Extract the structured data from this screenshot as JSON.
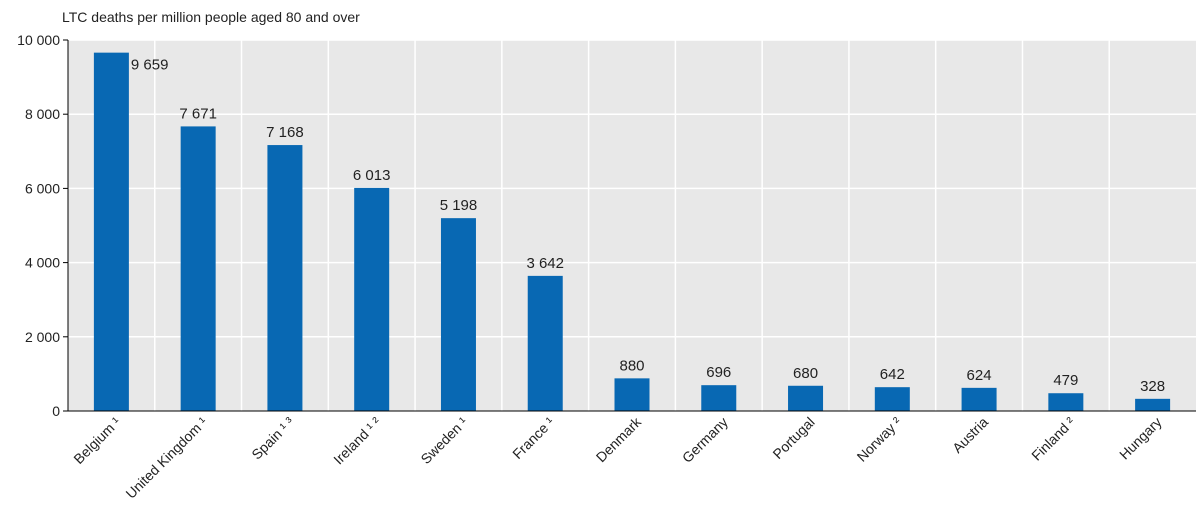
{
  "chart_data": {
    "type": "bar",
    "title": "",
    "xlabel": "",
    "ylabel": "LTC deaths per million people aged 80 and over",
    "ylim": [
      0,
      10000
    ],
    "yticks": [
      0,
      2000,
      4000,
      6000,
      8000,
      10000
    ],
    "ytick_labels": [
      "0",
      "2 000",
      "4 000",
      "6 000",
      "8 000",
      "10 000"
    ],
    "grid": true,
    "bar_color": "#0868b3",
    "background_color": "#e8e8e8",
    "categories": [
      "Belgium ¹",
      "United Kingdom ¹",
      "Spain ¹ ³",
      "Ireland ¹ ²",
      "Sweden ¹",
      "France ¹",
      "Denmark",
      "Germany",
      "Portugal",
      "Norway ²",
      "Austria",
      "Finland ²",
      "Hungary"
    ],
    "values": [
      9659,
      7671,
      7168,
      6013,
      5198,
      3642,
      880,
      696,
      680,
      642,
      624,
      479,
      328
    ],
    "value_labels": [
      "9 659",
      "7 671",
      "7 168",
      "6 013",
      "5 198",
      "3 642",
      "880",
      "696",
      "680",
      "642",
      "624",
      "479",
      "328"
    ]
  }
}
